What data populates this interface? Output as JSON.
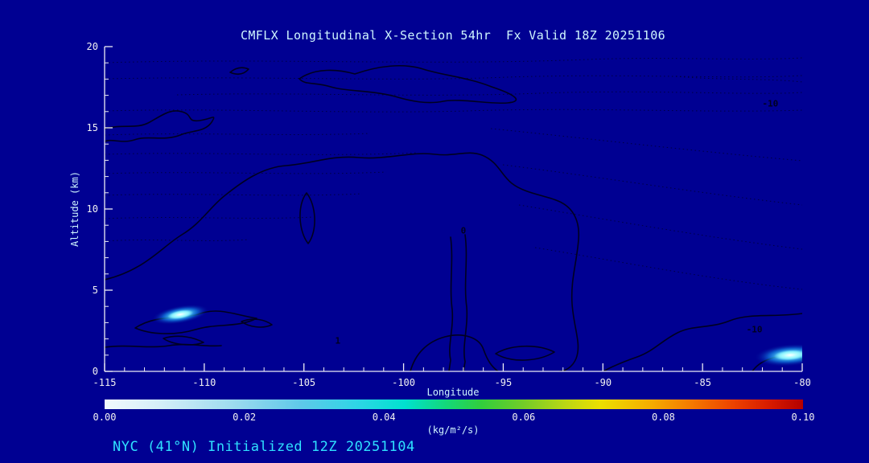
{
  "chart_data": {
    "type": "heatmap",
    "variant": "filled-contour-longitudinal-cross-section",
    "title": "CMFLX Longitudinal X-Section 54hr  Fx Valid 18Z 20251106",
    "xlabel": "Longitude",
    "ylabel": "Altitude (km)",
    "xlim": [
      -115,
      -80
    ],
    "ylim": [
      0,
      20
    ],
    "xticks": [
      -115,
      -110,
      -105,
      -100,
      -95,
      -90,
      -85,
      -80
    ],
    "yticks": [
      0,
      5,
      10,
      15,
      20
    ],
    "x_minor_step": 1,
    "y_minor_step": 1,
    "grid": false,
    "contour_labels": [
      {
        "text": "0",
        "lon": -97.0,
        "alt": 8.7
      },
      {
        "text": "-10",
        "lon": -81.6,
        "alt": 16.5
      },
      {
        "text": "-10",
        "lon": -82.4,
        "alt": 2.6
      },
      {
        "text": "1",
        "lon": -103.3,
        "alt": 1.9
      }
    ],
    "hotspots": [
      {
        "lon": -111.2,
        "alt": 3.5,
        "peak_value": 0.04
      },
      {
        "lon": -80.6,
        "alt": 1.0,
        "peak_value": 0.05
      }
    ],
    "colorbar": {
      "min": 0.0,
      "max": 0.1,
      "ticks": [
        "0.00",
        "0.02",
        "0.04",
        "0.06",
        "0.08",
        "0.10"
      ],
      "units": "(kg/m²/s)",
      "position": "bottom",
      "stops": [
        {
          "pos": 0.0,
          "color": "#F2FAFD"
        },
        {
          "pos": 0.08,
          "color": "#D4EEF8"
        },
        {
          "pos": 0.18,
          "color": "#9FDCEF"
        },
        {
          "pos": 0.28,
          "color": "#5FC9E9"
        },
        {
          "pos": 0.36,
          "color": "#2FD6E6"
        },
        {
          "pos": 0.43,
          "color": "#00E1CF"
        },
        {
          "pos": 0.49,
          "color": "#14D878"
        },
        {
          "pos": 0.54,
          "color": "#32CE3C"
        },
        {
          "pos": 0.6,
          "color": "#73CC28"
        },
        {
          "pos": 0.66,
          "color": "#BBD714"
        },
        {
          "pos": 0.71,
          "color": "#ECDF00"
        },
        {
          "pos": 0.78,
          "color": "#F5AE00"
        },
        {
          "pos": 0.84,
          "color": "#F57900"
        },
        {
          "pos": 0.9,
          "color": "#EC4200"
        },
        {
          "pos": 0.95,
          "color": "#D81C00"
        },
        {
          "pos": 1.0,
          "color": "#B40000"
        }
      ]
    },
    "caption": "NYC (41°N) Initialized 12Z 20251104"
  },
  "colors": {
    "background": "#000092",
    "title_text": "#CFF6FF",
    "axis_text": "#F2F2F2",
    "axis_line": "#EDEDF5",
    "caption_text": "#2FE1FF",
    "contour_line": "#000020"
  }
}
